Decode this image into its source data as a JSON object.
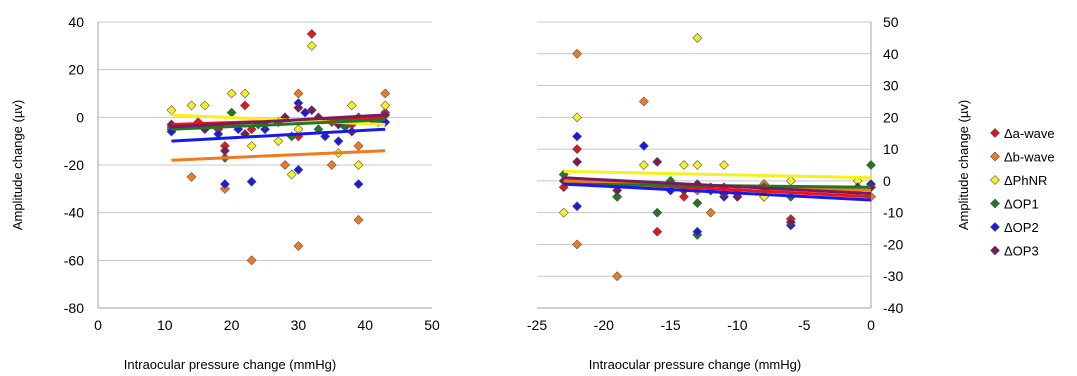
{
  "chart_data": [
    {
      "type": "scatter",
      "xlabel": "Intraocular pressure change (mmHg)",
      "ylabel": "Amplitude change (µv)",
      "xlim": [
        0,
        50
      ],
      "ylim": [
        -80,
        40
      ],
      "x_ticks": [
        "0",
        "10",
        "20",
        "30",
        "40",
        "50"
      ],
      "y_ticks": [
        "-80",
        "-60",
        "-40",
        "-20",
        "0",
        "20",
        "40"
      ],
      "grid": true,
      "y_axis_position": "left",
      "series": [
        {
          "name": "Δa-wave",
          "color": "#e8141c",
          "points": [
            [
              11,
              -4
            ],
            [
              15,
              -2
            ],
            [
              18,
              -5
            ],
            [
              19,
              -12
            ],
            [
              22,
              5
            ],
            [
              23,
              -5
            ],
            [
              27,
              -2
            ],
            [
              30,
              -8
            ],
            [
              32,
              35
            ],
            [
              35,
              -2
            ],
            [
              38,
              -3
            ],
            [
              43,
              2
            ]
          ],
          "trend": [
            [
              11,
              -3
            ],
            [
              43,
              0
            ]
          ]
        },
        {
          "name": "Δb-wave",
          "color": "#f07a1e",
          "points": [
            [
              14,
              -25
            ],
            [
              19,
              -30
            ],
            [
              23,
              -60
            ],
            [
              28,
              -20
            ],
            [
              30,
              10
            ],
            [
              30,
              -54
            ],
            [
              35,
              -20
            ],
            [
              39,
              -43
            ],
            [
              39,
              -12
            ],
            [
              43,
              10
            ]
          ],
          "trend": [
            [
              11,
              -18
            ],
            [
              43,
              -14
            ]
          ]
        },
        {
          "name": "ΔPhNR",
          "color": "#f5f01e",
          "points": [
            [
              11,
              3
            ],
            [
              14,
              5
            ],
            [
              16,
              5
            ],
            [
              20,
              10
            ],
            [
              22,
              10
            ],
            [
              23,
              -12
            ],
            [
              27,
              -10
            ],
            [
              29,
              -24
            ],
            [
              30,
              -5
            ],
            [
              32,
              30
            ],
            [
              36,
              -15
            ],
            [
              38,
              5
            ],
            [
              39,
              -20
            ],
            [
              43,
              5
            ]
          ],
          "trend": [
            [
              11,
              1
            ],
            [
              43,
              -3
            ]
          ]
        },
        {
          "name": "ΔOP1",
          "color": "#1f7a1f",
          "points": [
            [
              11,
              -5
            ],
            [
              16,
              -4
            ],
            [
              19,
              -17
            ],
            [
              20,
              2
            ],
            [
              24,
              -3
            ],
            [
              27,
              -2
            ],
            [
              29,
              -8
            ],
            [
              33,
              -5
            ],
            [
              37,
              -4
            ],
            [
              39,
              0
            ],
            [
              42,
              -2
            ]
          ],
          "trend": [
            [
              11,
              -5
            ],
            [
              43,
              -1
            ]
          ]
        },
        {
          "name": "ΔOP2",
          "color": "#1a1ae8",
          "points": [
            [
              11,
              -6
            ],
            [
              18,
              -7
            ],
            [
              19,
              -28
            ],
            [
              21,
              -5
            ],
            [
              23,
              -27
            ],
            [
              25,
              -5
            ],
            [
              30,
              -22
            ],
            [
              30,
              6
            ],
            [
              31,
              2
            ],
            [
              34,
              -8
            ],
            [
              36,
              -10
            ],
            [
              39,
              -28
            ],
            [
              43,
              -2
            ]
          ],
          "trend": [
            [
              11,
              -10
            ],
            [
              43,
              -5
            ]
          ]
        },
        {
          "name": "ΔOP3",
          "color": "#7a1a5c",
          "points": [
            [
              11,
              -3
            ],
            [
              16,
              -5
            ],
            [
              19,
              -14
            ],
            [
              22,
              -7
            ],
            [
              25,
              -3
            ],
            [
              28,
              0
            ],
            [
              30,
              4
            ],
            [
              32,
              3
            ],
            [
              33,
              0
            ],
            [
              36,
              -3
            ],
            [
              38,
              -6
            ],
            [
              41,
              -1
            ],
            [
              43,
              1
            ]
          ],
          "trend": [
            [
              11,
              -4
            ],
            [
              43,
              1
            ]
          ]
        }
      ]
    },
    {
      "type": "scatter",
      "xlabel": "Intraocular pressure change (mmHg)",
      "ylabel": "Amplitude change (µv)",
      "xlim": [
        -25,
        0
      ],
      "ylim": [
        -40,
        50
      ],
      "x_ticks": [
        "-25",
        "-20",
        "-15",
        "-10",
        "-5",
        "0"
      ],
      "y_ticks": [
        "-40",
        "-30",
        "-20",
        "-10",
        "0",
        "10",
        "20",
        "30",
        "40",
        "50"
      ],
      "grid": true,
      "y_axis_position": "right",
      "series": [
        {
          "name": "Δa-wave",
          "color": "#e8141c",
          "points": [
            [
              -23,
              -2
            ],
            [
              -22,
              10
            ],
            [
              -19,
              -5
            ],
            [
              -16,
              -16
            ],
            [
              -14,
              -5
            ],
            [
              -12,
              -3
            ],
            [
              -11,
              -2
            ],
            [
              -8,
              -5
            ],
            [
              -6,
              -12
            ],
            [
              -1,
              -3
            ],
            [
              0,
              -2
            ]
          ],
          "trend": [
            [
              -23,
              0
            ],
            [
              0,
              -5
            ]
          ]
        },
        {
          "name": "Δb-wave",
          "color": "#f07a1e",
          "points": [
            [
              -22,
              40
            ],
            [
              -22,
              -20
            ],
            [
              -19,
              -30
            ],
            [
              -17,
              25
            ],
            [
              -15,
              -3
            ],
            [
              -13,
              -3
            ],
            [
              -12,
              -10
            ],
            [
              -10,
              -3
            ],
            [
              -8,
              -1
            ],
            [
              0,
              -5
            ]
          ],
          "trend": [
            [
              -23,
              0
            ],
            [
              0,
              -3
            ]
          ]
        },
        {
          "name": "ΔPhNR",
          "color": "#f5f01e",
          "points": [
            [
              -23,
              -10
            ],
            [
              -22,
              20
            ],
            [
              -17,
              5
            ],
            [
              -14,
              5
            ],
            [
              -13,
              45
            ],
            [
              -13,
              5
            ],
            [
              -11,
              5
            ],
            [
              -8,
              -5
            ],
            [
              -6,
              0
            ],
            [
              -1,
              0
            ]
          ],
          "trend": [
            [
              -23,
              3
            ],
            [
              0,
              1
            ]
          ]
        },
        {
          "name": "ΔOP1",
          "color": "#1f7a1f",
          "points": [
            [
              -23,
              2
            ],
            [
              -19,
              -5
            ],
            [
              -16,
              -10
            ],
            [
              -15,
              0
            ],
            [
              -13,
              -17
            ],
            [
              -13,
              -7
            ],
            [
              -12,
              -2
            ],
            [
              -10,
              -5
            ],
            [
              -8,
              -3
            ],
            [
              -6,
              -5
            ],
            [
              0,
              5
            ]
          ],
          "trend": [
            [
              -23,
              -1
            ],
            [
              0,
              -2
            ]
          ]
        },
        {
          "name": "ΔOP2",
          "color": "#1a1ae8",
          "points": [
            [
              -22,
              14
            ],
            [
              -22,
              -8
            ],
            [
              -17,
              11
            ],
            [
              -15,
              -3
            ],
            [
              -13,
              -16
            ],
            [
              -12,
              -3
            ],
            [
              -11,
              -5
            ],
            [
              -10,
              -4
            ],
            [
              -6,
              -14
            ],
            [
              -1,
              -2
            ],
            [
              0,
              -1
            ]
          ],
          "trend": [
            [
              -23,
              -1
            ],
            [
              0,
              -6
            ]
          ]
        },
        {
          "name": "ΔOP3",
          "color": "#7a1a5c",
          "points": [
            [
              -23,
              0
            ],
            [
              -22,
              6
            ],
            [
              -19,
              -3
            ],
            [
              -16,
              6
            ],
            [
              -14,
              -3
            ],
            [
              -13,
              -1
            ],
            [
              -11,
              -4
            ],
            [
              -10,
              -5
            ],
            [
              -8,
              -2
            ],
            [
              -6,
              -13
            ],
            [
              0,
              -2
            ]
          ],
          "trend": [
            [
              -23,
              1
            ],
            [
              0,
              -4
            ]
          ]
        }
      ]
    }
  ],
  "legend": {
    "placement": "right",
    "entries": [
      "Δa-wave",
      "Δb-wave",
      "ΔPhNR",
      "ΔOP1",
      "ΔOP2",
      "ΔOP3"
    ],
    "colors": [
      "#e8141c",
      "#f07a1e",
      "#f5f01e",
      "#1f7a1f",
      "#1a1ae8",
      "#7a1a5c"
    ]
  }
}
